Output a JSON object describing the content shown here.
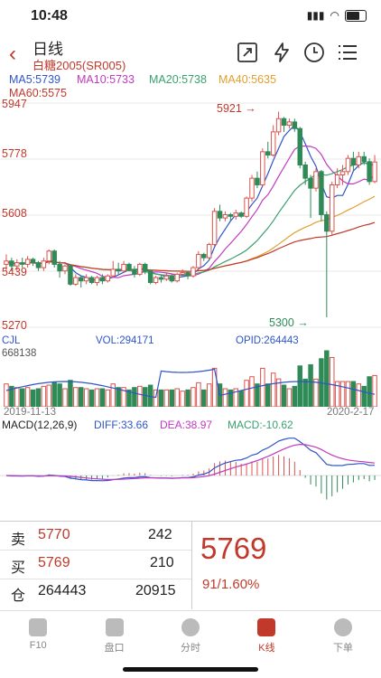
{
  "status": {
    "time": "10:48"
  },
  "header": {
    "title": "日线",
    "subtitle": "白糖2005(SR005)",
    "icons": [
      "expand-icon",
      "lightning-icon",
      "clock-icon",
      "menu-icon"
    ]
  },
  "ma_legend": {
    "ma5": "MA5:5739",
    "ma10": "MA10:5733",
    "ma20": "MA20:5738",
    "ma40": "MA40:5635",
    "ma60": "MA60:5575"
  },
  "price_axis": {
    "top": "5947",
    "mid1": "5778",
    "mid2": "5608",
    "mid3": "5439",
    "bottom": "5270"
  },
  "annotations": {
    "high": "5921",
    "low": "5300"
  },
  "volume_header": {
    "label": "CJL",
    "vol": "VOL:294171",
    "opid": "OPID:264443",
    "max": "668138"
  },
  "dates": {
    "start": "2019-11-13",
    "end": "2020-2-17"
  },
  "macd_header": {
    "label": "MACD(12,26,9)",
    "diff": "DIFF:33.66",
    "dea": "DEA:38.97",
    "macd": "MACD:-10.62"
  },
  "quote": {
    "sell_label": "卖",
    "sell_price": "5770",
    "sell_vol": "242",
    "buy_label": "买",
    "buy_price": "5769",
    "buy_vol": "210",
    "pos_label": "仓",
    "pos_value": "264443",
    "pos_change": "20915",
    "last_price": "5769",
    "change": "91/1.60%"
  },
  "tabs": [
    {
      "label": "F10"
    },
    {
      "label": "盘口"
    },
    {
      "label": "分时"
    },
    {
      "label": "K线"
    },
    {
      "label": "下单"
    }
  ],
  "colors": {
    "up": "#d9534f",
    "down": "#2e8b57",
    "ma5": "#2f55c9",
    "ma10": "#c03ac0",
    "ma20": "#3aa070",
    "ma40": "#e0a030",
    "ma60": "#c0392b"
  },
  "chart_data": {
    "type": "candlestick",
    "ylim": [
      5270,
      5947
    ],
    "candles": [
      [
        5460,
        5470,
        5490,
        5440
      ],
      [
        5470,
        5455,
        5480,
        5440
      ],
      [
        5455,
        5465,
        5475,
        5440
      ],
      [
        5465,
        5460,
        5480,
        5450
      ],
      [
        5460,
        5475,
        5485,
        5450
      ],
      [
        5475,
        5465,
        5480,
        5455
      ],
      [
        5465,
        5450,
        5470,
        5440
      ],
      [
        5450,
        5470,
        5480,
        5440
      ],
      [
        5470,
        5500,
        5505,
        5460
      ],
      [
        5500,
        5460,
        5505,
        5450
      ],
      [
        5460,
        5440,
        5470,
        5420
      ],
      [
        5440,
        5455,
        5460,
        5430
      ],
      [
        5455,
        5400,
        5460,
        5395
      ],
      [
        5400,
        5420,
        5430,
        5395
      ],
      [
        5420,
        5410,
        5425,
        5390
      ],
      [
        5410,
        5420,
        5430,
        5400
      ],
      [
        5420,
        5405,
        5425,
        5400
      ],
      [
        5405,
        5420,
        5425,
        5395
      ],
      [
        5420,
        5410,
        5430,
        5400
      ],
      [
        5410,
        5425,
        5430,
        5405
      ],
      [
        5425,
        5445,
        5470,
        5420
      ],
      [
        5445,
        5440,
        5465,
        5430
      ],
      [
        5440,
        5460,
        5470,
        5435
      ],
      [
        5460,
        5445,
        5465,
        5440
      ],
      [
        5445,
        5430,
        5455,
        5420
      ],
      [
        5430,
        5460,
        5465,
        5425
      ],
      [
        5460,
        5440,
        5465,
        5430
      ],
      [
        5440,
        5405,
        5445,
        5400
      ],
      [
        5405,
        5420,
        5425,
        5400
      ],
      [
        5420,
        5415,
        5430,
        5405
      ],
      [
        5415,
        5425,
        5435,
        5410
      ],
      [
        5425,
        5410,
        5430,
        5405
      ],
      [
        5410,
        5430,
        5435,
        5405
      ],
      [
        5430,
        5435,
        5445,
        5425
      ],
      [
        5435,
        5425,
        5440,
        5415
      ],
      [
        5425,
        5450,
        5455,
        5420
      ],
      [
        5450,
        5490,
        5500,
        5445
      ],
      [
        5490,
        5480,
        5495,
        5470
      ],
      [
        5480,
        5520,
        5525,
        5475
      ],
      [
        5520,
        5620,
        5630,
        5515
      ],
      [
        5620,
        5600,
        5640,
        5590
      ],
      [
        5600,
        5610,
        5620,
        5590
      ],
      [
        5610,
        5605,
        5615,
        5590
      ],
      [
        5605,
        5615,
        5625,
        5595
      ],
      [
        5615,
        5605,
        5620,
        5600
      ],
      [
        5605,
        5660,
        5665,
        5600
      ],
      [
        5660,
        5720,
        5730,
        5650
      ],
      [
        5720,
        5700,
        5740,
        5690
      ],
      [
        5700,
        5800,
        5810,
        5695
      ],
      [
        5800,
        5790,
        5830,
        5780
      ],
      [
        5790,
        5860,
        5880,
        5785
      ],
      [
        5860,
        5900,
        5921,
        5850
      ],
      [
        5900,
        5880,
        5905,
        5860
      ],
      [
        5880,
        5890,
        5900,
        5870
      ],
      [
        5890,
        5870,
        5900,
        5860
      ],
      [
        5870,
        5760,
        5875,
        5750
      ],
      [
        5760,
        5720,
        5770,
        5700
      ],
      [
        5720,
        5690,
        5730,
        5600
      ],
      [
        5690,
        5740,
        5750,
        5680
      ],
      [
        5740,
        5610,
        5745,
        5590
      ],
      [
        5610,
        5560,
        5620,
        5300
      ],
      [
        5560,
        5700,
        5710,
        5550
      ],
      [
        5700,
        5730,
        5750,
        5690
      ],
      [
        5730,
        5740,
        5760,
        5700
      ],
      [
        5740,
        5780,
        5790,
        5730
      ],
      [
        5780,
        5760,
        5800,
        5740
      ],
      [
        5760,
        5785,
        5800,
        5750
      ],
      [
        5785,
        5770,
        5800,
        5760
      ],
      [
        5770,
        5710,
        5780,
        5700
      ],
      [
        5710,
        5769,
        5790,
        5705
      ]
    ]
  }
}
